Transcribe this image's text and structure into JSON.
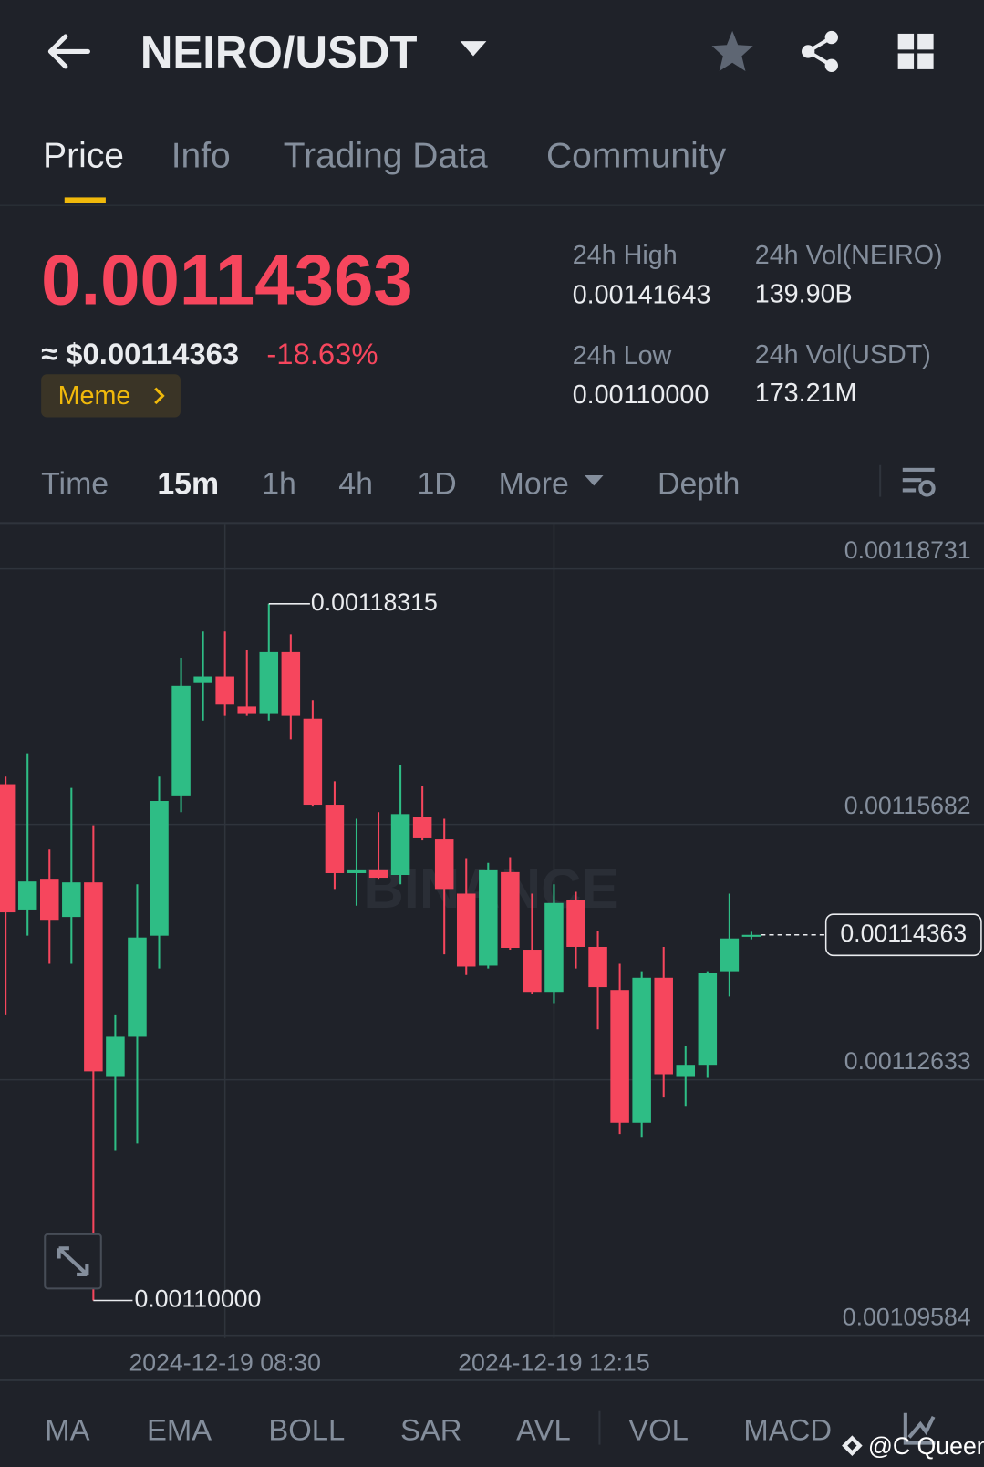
{
  "header": {
    "title": "NEIRO/USDT"
  },
  "tabs": [
    "Price",
    "Info",
    "Trading Data",
    "Community"
  ],
  "ticker": {
    "last_price": "0.00114363",
    "usd_price": "≈ $0.00114363",
    "change": "-18.63%",
    "tag": "Meme",
    "stats": [
      {
        "label": "24h High",
        "value": "0.00141643"
      },
      {
        "label": "24h Vol(NEIRO)",
        "value": "139.90B"
      },
      {
        "label": "24h Low",
        "value": "0.00110000"
      },
      {
        "label": "24h Vol(USDT)",
        "value": "173.21M"
      }
    ]
  },
  "intervals": [
    "Time",
    "15m",
    "1h",
    "4h",
    "1D",
    "More",
    "Depth"
  ],
  "chart_data": {
    "type": "candlestick",
    "logo_watermark": "BINANCE",
    "categories": [
      null,
      null,
      null,
      null,
      null,
      null,
      null,
      null,
      null,
      null,
      "2024-12-19 08:30",
      null,
      null,
      null,
      null,
      null,
      null,
      null,
      null,
      null,
      null,
      null,
      null,
      null,
      null,
      "2024-12-19 12:15",
      null,
      null,
      null,
      null,
      null,
      null,
      null,
      null,
      null
    ],
    "open": [
      0.00116162,
      0.00114666,
      0.00115023,
      0.00114577,
      0.0011499,
      0.00112678,
      0.00113147,
      0.00114353,
      0.00116028,
      0.00117369,
      0.00117447,
      0.00117089,
      0.00117,
      0.00117737,
      0.00116944,
      0.00115917,
      0.00115101,
      0.00115135,
      0.00115079,
      0.00115772,
      0.00115503,
      0.00114856,
      0.00113996,
      0.00115113,
      0.00114186,
      0.00113683,
      0.00114778,
      0.00114219,
      0.00113705,
      0.0011212,
      0.00113851,
      0.00112678,
      0.00112812,
      0.00113929,
      0.0011434
    ],
    "high": [
      0.00116252,
      0.00116531,
      0.00115381,
      0.00116118,
      0.00115671,
      0.00113404,
      0.00114967,
      0.00116252,
      0.0011767,
      0.00117983,
      0.00117983,
      0.00117759,
      0.00118315,
      0.00117949,
      0.00117167,
      0.00116196,
      0.00115749,
      0.00115827,
      0.00116386,
      0.0011614,
      0.00115749,
      0.00115269,
      0.00115224,
      0.00115291,
      0.00114856,
      0.00114967,
      0.00114878,
      0.00114409,
      0.00114018,
      0.00113929,
      0.00114219,
      0.00113035,
      0.00113929,
      0.00114856,
      0.001144
    ],
    "low": [
      0.00113404,
      0.00114353,
      0.00114018,
      0.00114018,
      0.0011,
      0.00111785,
      0.00111874,
      0.00113962,
      0.00115827,
      0.00116922,
      0.00116978,
      0.00116978,
      0.00116922,
      0.00116698,
      0.00115894,
      0.00114912,
      0.00114711,
      0.00115023,
      0.00114967,
      0.00115492,
      0.0011413,
      0.00113884,
      0.00113962,
      0.00114186,
      0.00113661,
      0.00113549,
      0.00113962,
      0.00113236,
      0.00111986,
      0.00111952,
      0.00112432,
      0.00112321,
      0.00112656,
      0.00113627,
      0.0011431
    ],
    "close": [
      0.00114632,
      0.00115001,
      0.00114543,
      0.0011499,
      0.00112734,
      0.00113147,
      0.00114331,
      0.00115961,
      0.00117335,
      0.00117447,
      0.00117112,
      0.00117,
      0.00117737,
      0.00116978,
      0.00115917,
      0.00115101,
      0.00115135,
      0.00115046,
      0.00115805,
      0.00115526,
      0.00114912,
      0.00113985,
      0.00115135,
      0.00114208,
      0.00113683,
      0.00114744,
      0.00114219,
      0.00113739,
      0.0011212,
      0.00113851,
      0.001127,
      0.00112812,
      0.00113906,
      0.0011432,
      0.00114363
    ],
    "ylim": [
      0.00109551,
      0.00119267
    ],
    "yticks": [
      0.00118731,
      0.00115682,
      0.00112633,
      0.00109584
    ],
    "grid": true,
    "up_color": "#2ebd85",
    "down_color": "#f6465d",
    "max_label": "0.00118315",
    "min_label": "0.00110000",
    "last_label": "0.00114363"
  },
  "indicators": [
    "MA",
    "EMA",
    "BOLL",
    "SAR",
    "AVL",
    "VOL",
    "MACD"
  ],
  "watermark": "@C Queen"
}
